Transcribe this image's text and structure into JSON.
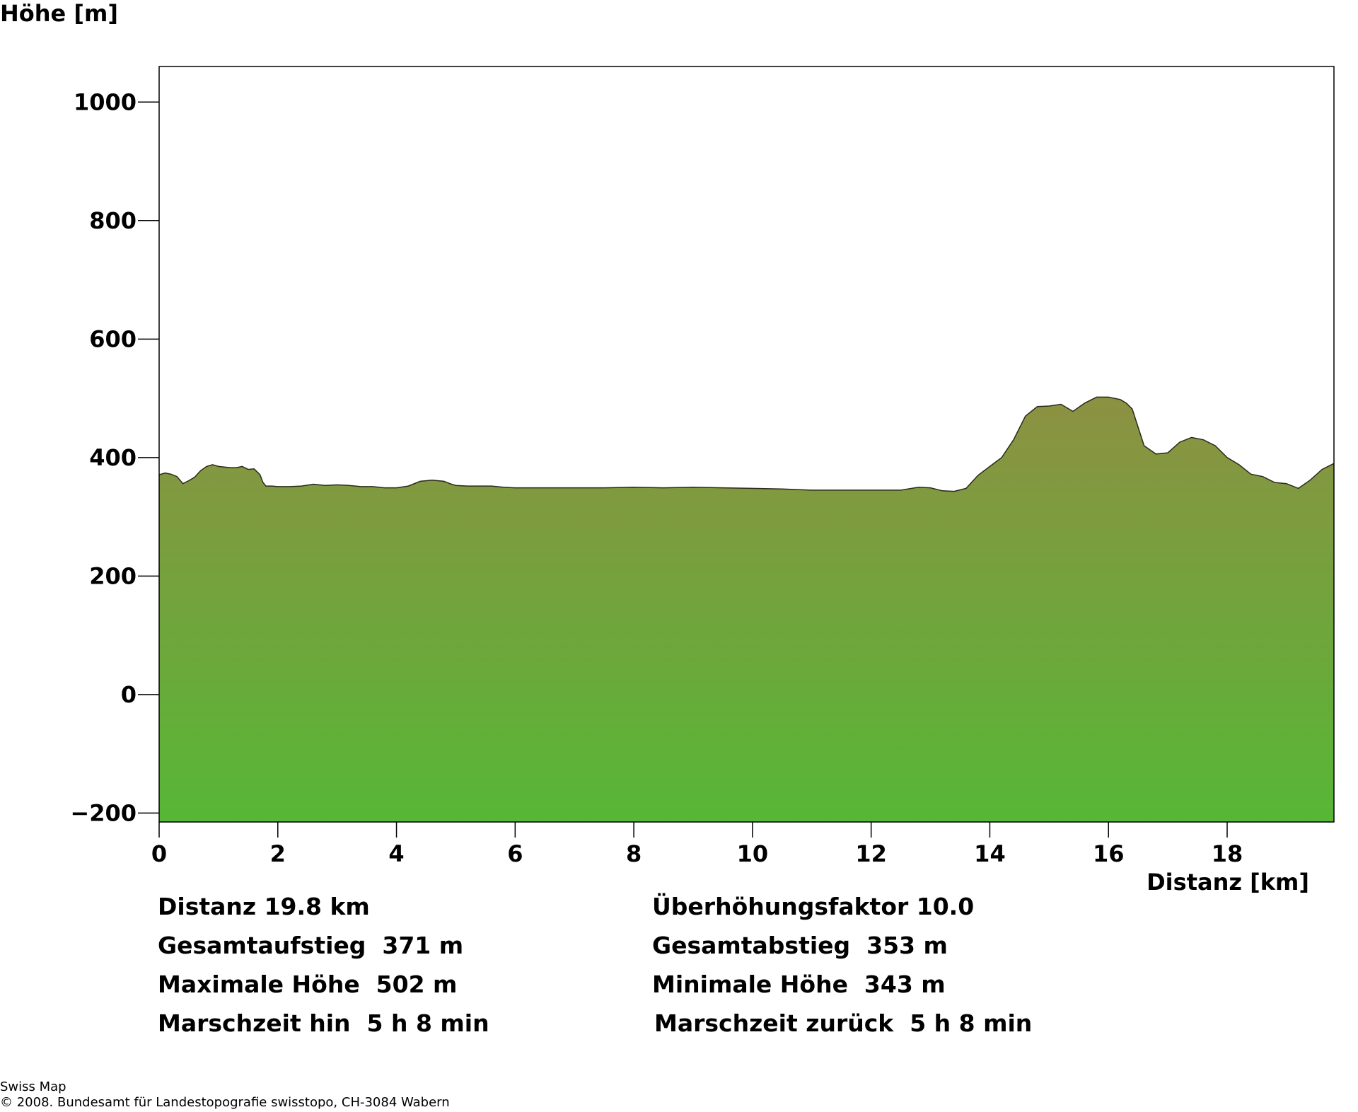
{
  "chart_data": {
    "type": "area",
    "ylabel": "Höhe [m]",
    "xlabel": "Distanz [km]",
    "xlim": [
      0,
      19.8
    ],
    "ylim": [
      -215,
      1060
    ],
    "x_ticks": [
      0,
      2,
      4,
      6,
      8,
      10,
      12,
      14,
      16,
      18
    ],
    "x_tick_labels": [
      "0",
      "2",
      "4",
      "6",
      "8",
      "10",
      "12",
      "14",
      "16",
      "18"
    ],
    "y_ticks": [
      -200,
      0,
      200,
      400,
      600,
      800,
      1000
    ],
    "y_tick_labels": [
      "−200",
      "0",
      "200",
      "400",
      "600",
      "800",
      "1000"
    ],
    "grid": false,
    "colors": {
      "fill_top": "#8c9142",
      "fill_bottom": "#57b736",
      "outline": "#2a2a1a",
      "frame": "#000000"
    },
    "series": [
      {
        "x": [
          0,
          0.1,
          0.2,
          0.3,
          0.4,
          0.5,
          0.6,
          0.7,
          0.8,
          0.9,
          1.0,
          1.1,
          1.2,
          1.3,
          1.4,
          1.5,
          1.6,
          1.7,
          1.75,
          1.8,
          1.9,
          2.0,
          2.2,
          2.4,
          2.6,
          2.8,
          3.0,
          3.2,
          3.4,
          3.6,
          3.8,
          4.0,
          4.2,
          4.4,
          4.6,
          4.8,
          4.9,
          5.0,
          5.2,
          5.4,
          5.6,
          5.8,
          6.0,
          6.5,
          7.0,
          7.5,
          8.0,
          8.5,
          9.0,
          9.5,
          10.0,
          10.5,
          11.0,
          11.5,
          12.0,
          12.5,
          12.8,
          13.0,
          13.2,
          13.4,
          13.6,
          13.8,
          14.0,
          14.2,
          14.4,
          14.6,
          14.8,
          15.0,
          15.2,
          15.4,
          15.6,
          15.8,
          16.0,
          16.2,
          16.3,
          16.4,
          16.6,
          16.8,
          17.0,
          17.2,
          17.4,
          17.6,
          17.8,
          18.0,
          18.2,
          18.4,
          18.6,
          18.8,
          19.0,
          19.2,
          19.4,
          19.6,
          19.8
        ],
        "y": [
          371,
          374,
          372,
          368,
          356,
          361,
          367,
          378,
          385,
          388,
          385,
          384,
          383,
          383,
          385,
          380,
          381,
          371,
          358,
          352,
          352,
          351,
          351,
          352,
          355,
          353,
          354,
          353,
          351,
          351,
          349,
          349,
          352,
          360,
          362,
          360,
          356,
          353,
          352,
          352,
          352,
          350,
          349,
          349,
          349,
          349,
          350,
          349,
          350,
          349,
          348,
          347,
          345,
          345,
          345,
          345,
          350,
          349,
          344,
          343,
          348,
          370,
          385,
          400,
          430,
          470,
          486,
          487,
          490,
          478,
          492,
          502,
          502,
          498,
          492,
          482,
          420,
          406,
          408,
          426,
          434,
          430,
          420,
          400,
          388,
          372,
          368,
          358,
          356,
          348,
          362,
          380,
          390
        ]
      }
    ]
  },
  "stats": {
    "distanz": "Distanz 19.8 km",
    "ueberhoehung": "Überhöhungsfaktor 10.0",
    "aufstieg": "Gesamtaufstieg  371 m",
    "abstieg": "Gesamtabstieg  353 m",
    "max_hoehe": "Maximale Höhe  502 m",
    "min_hoehe": "Minimale Höhe  343 m",
    "marsch_hin": "Marschzeit hin  5 h 8 min",
    "marsch_zurueck": "Marschzeit zurück  5 h 8 min"
  },
  "footer": {
    "line1": "Swiss Map",
    "line2": "© 2008. Bundesamt für Landestopografie swisstopo, CH-3084 Wabern"
  }
}
